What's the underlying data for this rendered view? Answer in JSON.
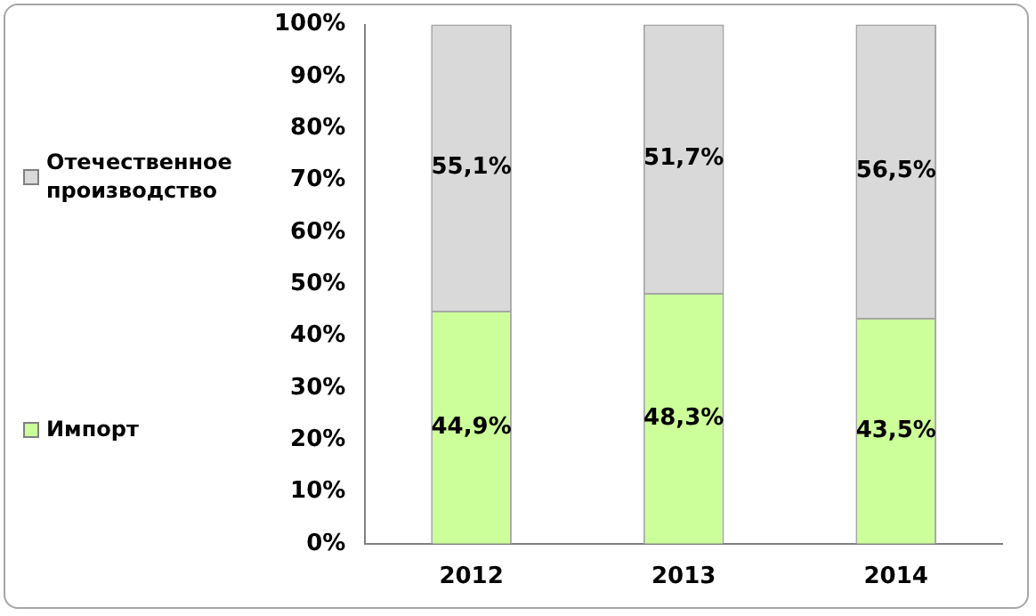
{
  "chart_data": {
    "type": "bar",
    "stacked": true,
    "categories": [
      "2012",
      "2013",
      "2014"
    ],
    "series": [
      {
        "name": "Импорт",
        "color": "#ccff99",
        "values": [
          44.9,
          48.3,
          43.5
        ],
        "value_labels": [
          "44,9%",
          "48,3%",
          "43,5%"
        ]
      },
      {
        "name": "Отечественное производство",
        "color": "#d9d9d9",
        "values": [
          55.1,
          51.7,
          56.5
        ],
        "value_labels": [
          "55,1%",
          "51,7%",
          "56,5%"
        ]
      }
    ],
    "ylim": [
      0,
      100
    ],
    "yticks": [
      {
        "value": 0,
        "label": "0%"
      },
      {
        "value": 10,
        "label": "10%"
      },
      {
        "value": 20,
        "label": "20%"
      },
      {
        "value": 30,
        "label": "30%"
      },
      {
        "value": 40,
        "label": "40%"
      },
      {
        "value": 50,
        "label": "50%"
      },
      {
        "value": 60,
        "label": "60%"
      },
      {
        "value": 70,
        "label": "70%"
      },
      {
        "value": 80,
        "label": "80%"
      },
      {
        "value": 90,
        "label": "90%"
      },
      {
        "value": 100,
        "label": "100%"
      }
    ],
    "grid": false,
    "legend": "left"
  }
}
